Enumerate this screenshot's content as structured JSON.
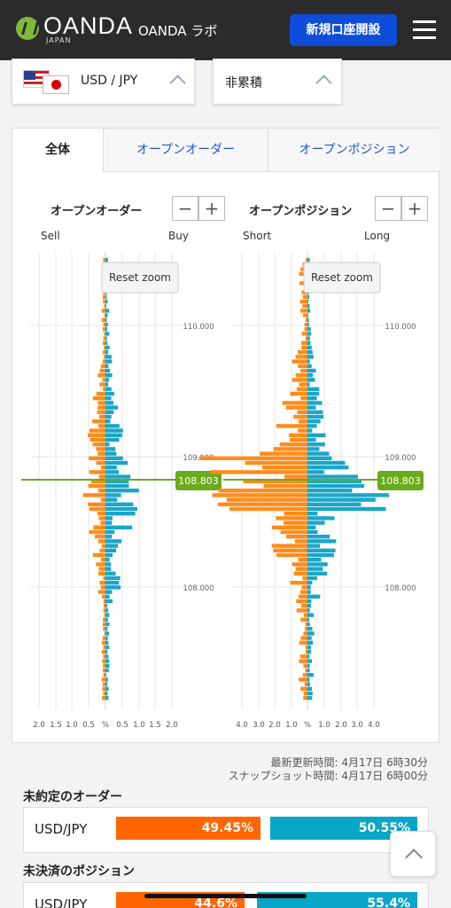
{
  "header": {
    "logo": "OANDA",
    "logo_sub": "JAPAN",
    "nav_title": "OANDA ラボ",
    "cta_label": "新規口座開設"
  },
  "selectors": {
    "pair": "USD / JPY",
    "mode": "非累積"
  },
  "tabs": [
    "全体",
    "オープンオーダー",
    "オープンポジション"
  ],
  "orders_chart": {
    "title": "オープンオーダー",
    "left_label": "Sell",
    "right_label": "Buy",
    "reset_label": "Reset zoom",
    "price_ticks": [
      "110.000",
      "109.000",
      "108.000"
    ],
    "current_price": "108.803",
    "x_ticks": [
      "2.0",
      "1.5",
      "1.0",
      "0.5",
      "%",
      "0.5",
      "1.0",
      "1.5",
      "2.0"
    ]
  },
  "positions_chart": {
    "title": "オープンポジション",
    "left_label": "Short",
    "right_label": "Long",
    "reset_label": "Reset zoom",
    "price_ticks": [
      "110.000",
      "109.000",
      "108.000"
    ],
    "current_price": "108.803",
    "x_ticks": [
      "4.0",
      "3.0",
      "2.0",
      "1.0",
      "%",
      "1.0",
      "2.0",
      "3.0",
      "4.0"
    ]
  },
  "zoom": {
    "minus": "−",
    "plus": "+"
  },
  "updated": {
    "latest": "最新更新時間: 4月17日 6時30分",
    "snapshot": "スナップショット時間: 4月17日 6時00分"
  },
  "order_ratio": {
    "title": "未約定のオーダー",
    "pair": "USD/JPY",
    "sell": "49.45%",
    "buy": "50.55%"
  },
  "position_ratio": {
    "title": "未決済のポジション",
    "pair": "USD/JPY",
    "sell": "44.6%",
    "buy": "55.4%"
  },
  "colors": {
    "sell": "#ff8c1a",
    "buy": "#1aa6c8",
    "price_line": "#6aaa1e",
    "cta": "#0f4dd8"
  }
}
